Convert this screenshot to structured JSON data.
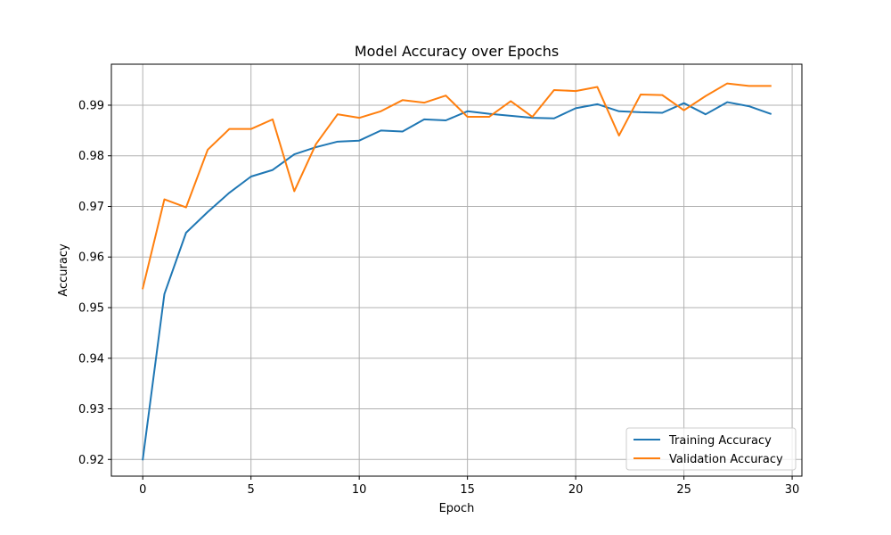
{
  "chart_data": {
    "type": "line",
    "title": "Model Accuracy over Epochs",
    "xlabel": "Epoch",
    "ylabel": "Accuracy",
    "xlim": [
      -1.45,
      30.45
    ],
    "ylim": [
      0.9167,
      0.9981
    ],
    "xticks": [
      0,
      5,
      10,
      15,
      20,
      25,
      30
    ],
    "xtick_labels": [
      "0",
      "5",
      "10",
      "15",
      "20",
      "25",
      "30"
    ],
    "yticks": [
      0.92,
      0.93,
      0.94,
      0.95,
      0.96,
      0.97,
      0.98,
      0.99
    ],
    "ytick_labels": [
      "0.92",
      "0.93",
      "0.94",
      "0.95",
      "0.96",
      "0.97",
      "0.98",
      "0.99"
    ],
    "grid": true,
    "legend_position": "lower-right",
    "x": [
      0,
      1,
      2,
      3,
      4,
      5,
      6,
      7,
      8,
      9,
      10,
      11,
      12,
      13,
      14,
      15,
      16,
      17,
      18,
      19,
      20,
      21,
      22,
      23,
      24,
      25,
      26,
      27,
      28,
      29
    ],
    "series": [
      {
        "name": "Training Accuracy",
        "color": "#1f77b4",
        "values": [
          0.92,
          0.9527,
          0.9648,
          0.9689,
          0.9727,
          0.9759,
          0.9772,
          0.9803,
          0.9817,
          0.9828,
          0.983,
          0.985,
          0.9848,
          0.9872,
          0.987,
          0.9888,
          0.9883,
          0.9879,
          0.9875,
          0.9874,
          0.9894,
          0.9902,
          0.9888,
          0.9886,
          0.9885,
          0.9904,
          0.9882,
          0.9906,
          0.9898,
          0.9883
        ]
      },
      {
        "name": "Validation Accuracy",
        "color": "#ff7f0e",
        "values": [
          0.9538,
          0.9714,
          0.9698,
          0.9812,
          0.9853,
          0.9853,
          0.9872,
          0.973,
          0.9823,
          0.9882,
          0.9875,
          0.9888,
          0.991,
          0.9905,
          0.9919,
          0.9877,
          0.9877,
          0.9908,
          0.9877,
          0.993,
          0.9928,
          0.9936,
          0.984,
          0.9921,
          0.992,
          0.989,
          0.9918,
          0.9943,
          0.9938,
          0.9938
        ]
      }
    ]
  }
}
